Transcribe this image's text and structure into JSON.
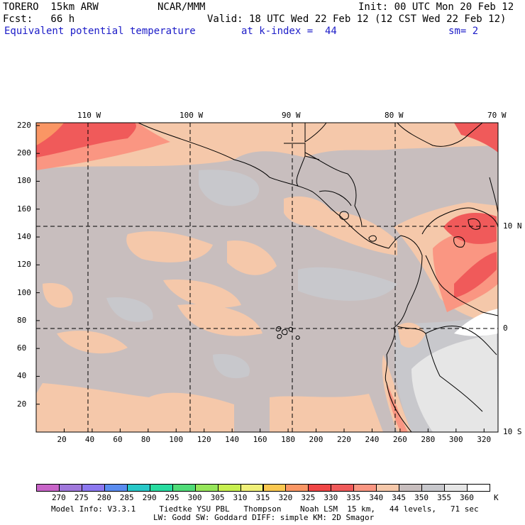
{
  "header": {
    "model": "TORERO  15km ARW",
    "center": "NCAR/MMM",
    "init": "Init: 00 UTC Mon 20 Feb 12",
    "fcst": "Fcst:   66 h",
    "valid": "Valid: 18 UTC Wed 22 Feb 12 (12 CST Wed 22 Feb 12)",
    "field": "Equivalent potential temperature",
    "kindex": "at k-index =  44",
    "smooth": "sm= 2"
  },
  "map": {
    "lon_labels": [
      "110 W",
      "100 W",
      "90 W",
      "80 W",
      "70 W"
    ],
    "lat_labels": [
      "10 N",
      "0",
      "10 S"
    ],
    "x_ticks": [
      "20",
      "40",
      "60",
      "80",
      "100",
      "120",
      "140",
      "160",
      "180",
      "200",
      "220",
      "240",
      "260",
      "280",
      "300",
      "320"
    ],
    "y_ticks": [
      "220",
      "200",
      "180",
      "160",
      "140",
      "120",
      "100",
      "80",
      "60",
      "40",
      "20"
    ]
  },
  "colorbar": {
    "labels": [
      "270",
      "275",
      "280",
      "285",
      "290",
      "295",
      "300",
      "305",
      "310",
      "315",
      "320",
      "325",
      "330",
      "335",
      "340",
      "345",
      "350",
      "355",
      "360"
    ],
    "unit": "K",
    "colors": [
      "#c864c8",
      "#a078dc",
      "#8c78f0",
      "#5a8cf0",
      "#28c8c8",
      "#28dca0",
      "#50dc78",
      "#96e65a",
      "#c8f050",
      "#f0f078",
      "#fac850",
      "#fa9664",
      "#f04646",
      "#f05a5a",
      "#fa9682",
      "#f5c8aa",
      "#c8bebe",
      "#c8c8cc",
      "#e6e6e6",
      "#ffffff"
    ]
  },
  "footer": {
    "line1": "Model Info: V3.3.1     Tiedtke YSU PBL   Thompson    Noah LSM  15 km,   44 levels,   71 sec",
    "line2": "LW: Godd SW: Goddard DIFF: simple KM: 2D Smagor"
  }
}
